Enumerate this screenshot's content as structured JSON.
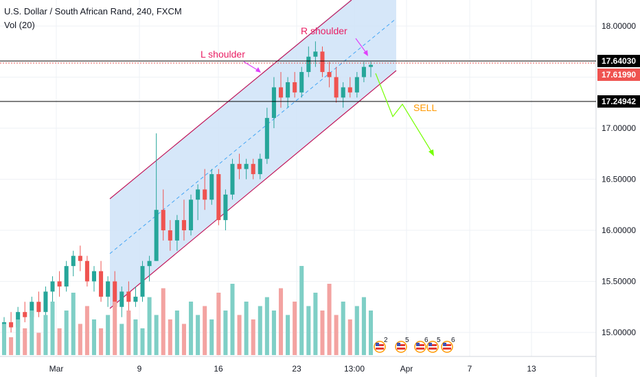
{
  "header": {
    "title": "U.S. Dollar / South African Rand, 240, FXCM",
    "indicator": "Vol (20)"
  },
  "colors": {
    "up": "#26a69a",
    "down": "#ef5350",
    "vol_up": "#7fcfc6",
    "vol_down": "#f3a3a1",
    "channel_fill": "#cfe3f8",
    "channel_line": "#c2185b",
    "mid_line": "#42a5f5",
    "annotation_pink": "#e040fb",
    "annotation_label": "#e91e63",
    "arrow_green": "#76ff03",
    "sell_text": "#ff9800",
    "price_red": "#ef5350"
  },
  "price_axis": {
    "ticks": [
      "18.00000",
      "17.00000",
      "16.50000",
      "16.00000",
      "15.50000",
      "15.00000"
    ],
    "labels": {
      "current": "17.64030",
      "bid": "17.61990",
      "support": "17.24942"
    }
  },
  "time_axis": {
    "ticks": [
      "Mar",
      "9",
      "16",
      "23",
      "13:00",
      "Apr",
      "7",
      "13"
    ]
  },
  "annotations": {
    "l_shoulder": "L shoulder",
    "r_shoulder": "R shoulder",
    "sell": "SELL"
  },
  "events": {
    "badges": [
      "2",
      "5",
      "6",
      "5",
      "6"
    ]
  },
  "chart_data": {
    "type": "candlestick",
    "title": "U.S. Dollar / South African Rand, 240, FXCM",
    "xlabel": "",
    "ylabel": "",
    "ylim": [
      14.75,
      18.3
    ],
    "grid": true,
    "levels": [
      17.6403,
      17.6199,
      17.24942
    ],
    "candles": [
      [
        15.0,
        15.15,
        14.95,
        15.1
      ],
      [
        15.1,
        15.2,
        15.0,
        15.05
      ],
      [
        15.05,
        15.25,
        15.0,
        15.2
      ],
      [
        15.2,
        15.3,
        15.1,
        15.15
      ],
      [
        15.15,
        15.35,
        15.1,
        15.3
      ],
      [
        15.3,
        15.4,
        15.15,
        15.2
      ],
      [
        15.2,
        15.45,
        15.15,
        15.4
      ],
      [
        15.4,
        15.55,
        15.3,
        15.5
      ],
      [
        15.5,
        15.6,
        15.35,
        15.45
      ],
      [
        15.45,
        15.7,
        15.4,
        15.65
      ],
      [
        15.65,
        15.8,
        15.55,
        15.75
      ],
      [
        15.75,
        15.85,
        15.6,
        15.7
      ],
      [
        15.7,
        15.75,
        15.45,
        15.5
      ],
      [
        15.5,
        15.65,
        15.4,
        15.6
      ],
      [
        15.6,
        15.7,
        15.3,
        15.35
      ],
      [
        15.35,
        15.55,
        15.25,
        15.5
      ],
      [
        15.5,
        15.6,
        15.2,
        15.25
      ],
      [
        15.25,
        15.45,
        15.15,
        15.4
      ],
      [
        15.4,
        15.5,
        15.2,
        15.3
      ],
      [
        15.3,
        15.45,
        15.25,
        15.35
      ],
      [
        15.35,
        15.7,
        15.3,
        15.65
      ],
      [
        15.65,
        15.75,
        15.5,
        15.7
      ],
      [
        15.7,
        16.95,
        15.7,
        16.2
      ],
      [
        16.2,
        16.4,
        15.9,
        16.0
      ],
      [
        16.0,
        16.1,
        15.8,
        15.9
      ],
      [
        15.9,
        16.15,
        15.8,
        16.1
      ],
      [
        16.1,
        16.3,
        15.9,
        16.0
      ],
      [
        16.0,
        16.35,
        15.95,
        16.3
      ],
      [
        16.3,
        16.45,
        16.1,
        16.4
      ],
      [
        16.4,
        16.6,
        16.2,
        16.3
      ],
      [
        16.3,
        16.6,
        16.25,
        16.55
      ],
      [
        16.55,
        16.6,
        16.05,
        16.1
      ],
      [
        16.1,
        16.4,
        16.0,
        16.35
      ],
      [
        16.35,
        16.7,
        16.3,
        16.65
      ],
      [
        16.65,
        16.75,
        16.5,
        16.6
      ],
      [
        16.6,
        16.7,
        16.5,
        16.65
      ],
      [
        16.65,
        16.7,
        16.5,
        16.55
      ],
      [
        16.55,
        16.75,
        16.5,
        16.7
      ],
      [
        16.7,
        17.2,
        16.65,
        17.1
      ],
      [
        17.1,
        17.5,
        17.0,
        17.4
      ],
      [
        17.4,
        17.55,
        17.2,
        17.3
      ],
      [
        17.3,
        17.5,
        17.2,
        17.45
      ],
      [
        17.45,
        17.55,
        17.3,
        17.35
      ],
      [
        17.35,
        17.6,
        17.3,
        17.55
      ],
      [
        17.55,
        17.8,
        17.5,
        17.7
      ],
      [
        17.7,
        17.85,
        17.6,
        17.75
      ],
      [
        17.75,
        17.8,
        17.5,
        17.55
      ],
      [
        17.55,
        17.65,
        17.4,
        17.5
      ],
      [
        17.5,
        17.6,
        17.25,
        17.3
      ],
      [
        17.3,
        17.45,
        17.2,
        17.4
      ],
      [
        17.4,
        17.5,
        17.3,
        17.35
      ],
      [
        17.35,
        17.55,
        17.3,
        17.5
      ],
      [
        17.5,
        17.65,
        17.45,
        17.6
      ],
      [
        17.6,
        17.65,
        17.5,
        17.62
      ]
    ],
    "volumes": [
      0.35,
      0.2,
      0.4,
      0.3,
      0.5,
      0.25,
      0.45,
      0.6,
      0.3,
      0.5,
      0.7,
      0.35,
      0.55,
      0.4,
      0.3,
      0.45,
      0.6,
      0.35,
      0.5,
      0.4,
      0.3,
      0.65,
      0.45,
      0.75,
      0.4,
      0.5,
      0.35,
      0.6,
      0.45,
      0.55,
      0.4,
      0.7,
      0.5,
      0.8,
      0.45,
      0.6,
      0.4,
      0.55,
      0.65,
      0.5,
      0.75,
      0.45,
      0.6,
      1.0,
      0.55,
      0.7,
      0.5,
      0.8,
      0.45,
      0.6,
      0.4,
      0.55,
      0.65,
      0.5
    ]
  }
}
